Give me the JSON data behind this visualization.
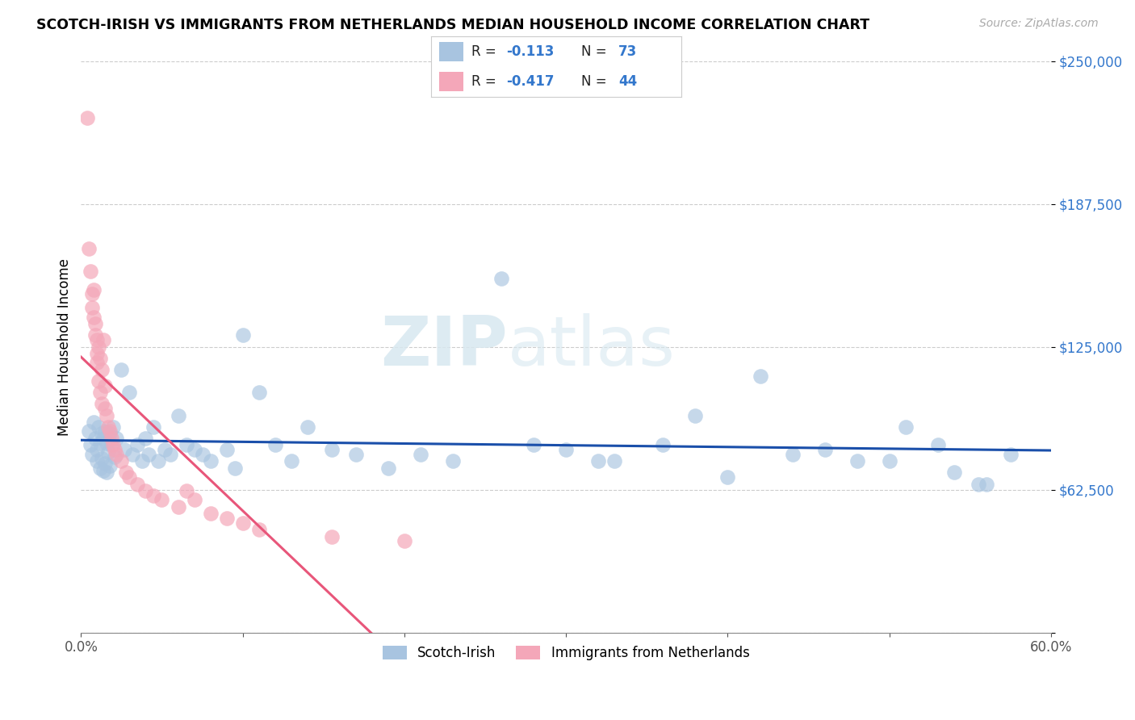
{
  "title": "SCOTCH-IRISH VS IMMIGRANTS FROM NETHERLANDS MEDIAN HOUSEHOLD INCOME CORRELATION CHART",
  "source": "Source: ZipAtlas.com",
  "ylabel": "Median Household Income",
  "yticks": [
    0,
    62500,
    125000,
    187500,
    250000
  ],
  "ytick_labels": [
    "",
    "$62,500",
    "$125,000",
    "$187,500",
    "$250,000"
  ],
  "xmin": 0.0,
  "xmax": 0.6,
  "ymin": 0,
  "ymax": 250000,
  "blue_R": "-0.113",
  "blue_N": "73",
  "pink_R": "-0.417",
  "pink_N": "44",
  "blue_color": "#a8c4e0",
  "pink_color": "#f4a7b9",
  "blue_line_color": "#1a4faa",
  "pink_line_color": "#e8567a",
  "watermark_zip": "ZIP",
  "watermark_atlas": "atlas",
  "legend_label_blue": "Scotch-Irish",
  "legend_label_pink": "Immigrants from Netherlands",
  "scotch_irish_x": [
    0.005,
    0.006,
    0.007,
    0.008,
    0.009,
    0.01,
    0.01,
    0.011,
    0.012,
    0.012,
    0.013,
    0.013,
    0.014,
    0.014,
    0.015,
    0.015,
    0.016,
    0.016,
    0.017,
    0.018,
    0.018,
    0.019,
    0.02,
    0.021,
    0.022,
    0.025,
    0.027,
    0.03,
    0.032,
    0.035,
    0.038,
    0.04,
    0.042,
    0.045,
    0.048,
    0.052,
    0.055,
    0.06,
    0.065,
    0.07,
    0.075,
    0.08,
    0.09,
    0.095,
    0.1,
    0.11,
    0.12,
    0.13,
    0.14,
    0.155,
    0.17,
    0.19,
    0.21,
    0.23,
    0.26,
    0.3,
    0.33,
    0.36,
    0.4,
    0.44,
    0.48,
    0.51,
    0.54,
    0.56,
    0.28,
    0.32,
    0.38,
    0.42,
    0.46,
    0.5,
    0.53,
    0.555,
    0.575
  ],
  "scotch_irish_y": [
    88000,
    82000,
    78000,
    92000,
    85000,
    80000,
    75000,
    90000,
    83000,
    72000,
    87000,
    76000,
    85000,
    71000,
    88000,
    74000,
    83000,
    70000,
    79000,
    87000,
    73000,
    82000,
    90000,
    77000,
    85000,
    115000,
    80000,
    105000,
    78000,
    82000,
    75000,
    85000,
    78000,
    90000,
    75000,
    80000,
    78000,
    95000,
    82000,
    80000,
    78000,
    75000,
    80000,
    72000,
    130000,
    105000,
    82000,
    75000,
    90000,
    80000,
    78000,
    72000,
    78000,
    75000,
    155000,
    80000,
    75000,
    82000,
    68000,
    78000,
    75000,
    90000,
    70000,
    65000,
    82000,
    75000,
    95000,
    112000,
    80000,
    75000,
    82000,
    65000,
    78000
  ],
  "netherlands_x": [
    0.004,
    0.005,
    0.006,
    0.007,
    0.007,
    0.008,
    0.008,
    0.009,
    0.009,
    0.01,
    0.01,
    0.01,
    0.011,
    0.011,
    0.012,
    0.012,
    0.013,
    0.013,
    0.014,
    0.015,
    0.015,
    0.016,
    0.017,
    0.018,
    0.019,
    0.02,
    0.021,
    0.022,
    0.025,
    0.028,
    0.03,
    0.035,
    0.04,
    0.045,
    0.05,
    0.06,
    0.065,
    0.07,
    0.08,
    0.09,
    0.1,
    0.11,
    0.155,
    0.2
  ],
  "netherlands_y": [
    225000,
    168000,
    158000,
    148000,
    142000,
    150000,
    138000,
    135000,
    130000,
    128000,
    122000,
    118000,
    125000,
    110000,
    120000,
    105000,
    115000,
    100000,
    128000,
    98000,
    108000,
    95000,
    90000,
    88000,
    85000,
    82000,
    80000,
    78000,
    75000,
    70000,
    68000,
    65000,
    62000,
    60000,
    58000,
    55000,
    62000,
    58000,
    52000,
    50000,
    48000,
    45000,
    42000,
    40000
  ]
}
